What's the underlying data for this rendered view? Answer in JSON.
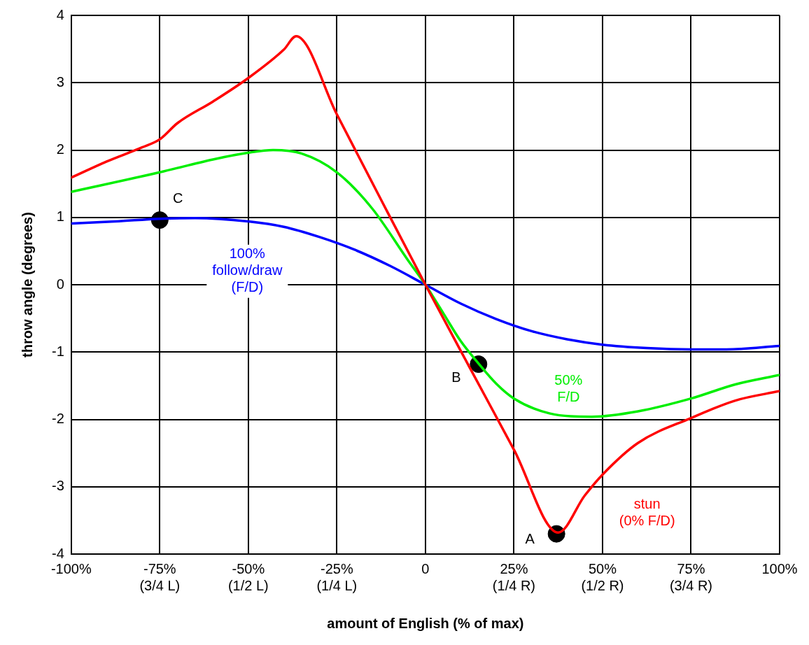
{
  "chart_data": {
    "type": "line",
    "xlabel": "amount of English (% of max)",
    "ylabel": "throw angle (degrees)",
    "xlim": [
      -100,
      100
    ],
    "ylim": [
      -4,
      4
    ],
    "xticks": [
      {
        "value": -100,
        "label": "-100%"
      },
      {
        "value": -75,
        "label": "-75%\n(3/4 L)"
      },
      {
        "value": -50,
        "label": "-50%\n(1/2 L)"
      },
      {
        "value": -25,
        "label": "-25%\n(1/4 L)"
      },
      {
        "value": 0,
        "label": "0"
      },
      {
        "value": 25,
        "label": "25%\n(1/4 R)"
      },
      {
        "value": 50,
        "label": "50%\n(1/2 R)"
      },
      {
        "value": 75,
        "label": "75%\n(3/4 R)"
      },
      {
        "value": 100,
        "label": "100%"
      }
    ],
    "yticks": [
      -4,
      -3,
      -2,
      -1,
      0,
      1,
      2,
      3,
      4
    ],
    "grid": true,
    "legend": false,
    "marker": "none",
    "line_style": "solid",
    "series": [
      {
        "color": "#ff0000",
        "x": [
          -100,
          -90,
          -80,
          -75,
          -70,
          -60,
          -50,
          -40,
          -36.5,
          -25,
          -12.5,
          0,
          12.5,
          25,
          37.5,
          45,
          50,
          60,
          75,
          87.5,
          100
        ],
        "values": [
          1.59,
          1.83,
          2.04,
          2.16,
          2.4,
          2.72,
          3.07,
          3.49,
          3.69,
          2.53,
          1.26,
          0,
          -1.23,
          -2.45,
          -3.68,
          -3.13,
          -2.82,
          -2.35,
          -1.98,
          -1.72,
          -1.58
        ]
      },
      {
        "color": "#00ee00",
        "x": [
          -100,
          -75,
          -60,
          -50,
          -43,
          -35,
          -25,
          -15,
          -5,
          0,
          5,
          10,
          15,
          20,
          25,
          35,
          47,
          60,
          75,
          87.5,
          100
        ],
        "values": [
          1.38,
          1.67,
          1.86,
          1.96,
          2,
          1.95,
          1.67,
          1.13,
          0.37,
          0,
          -0.42,
          -0.84,
          -1.17,
          -1.47,
          -1.69,
          -1.91,
          -1.96,
          -1.88,
          -1.69,
          -1.48,
          -1.34
        ]
      },
      {
        "color": "#0000ff",
        "x": [
          -100,
          -87.5,
          -75,
          -65,
          -50,
          -40,
          -30,
          -20,
          -10,
          0,
          10,
          20,
          30,
          40,
          50,
          62.5,
          75,
          85,
          100
        ],
        "values": [
          0.91,
          0.94,
          0.98,
          0.99,
          0.94,
          0.86,
          0.71,
          0.52,
          0.28,
          0,
          -0.28,
          -0.51,
          -0.69,
          -0.81,
          -0.89,
          -0.94,
          -0.96,
          -0.96,
          -0.91
        ]
      },
      {
        "type": "scatter",
        "color": "#000000",
        "marker": "circle",
        "x": [
          -75,
          15,
          37
        ],
        "values": [
          0.96,
          -1.18,
          -3.7
        ]
      }
    ],
    "annotations": [
      {
        "text": "C",
        "x": -75,
        "y": 0.96
      },
      {
        "text": "B",
        "x": 15,
        "y": -1.18
      },
      {
        "text": "A",
        "x": 37,
        "y": -3.7
      },
      "100%\nfollow/draw\n(F/D)",
      "50%\nF/D",
      "stun\n(0% F/D)"
    ]
  }
}
